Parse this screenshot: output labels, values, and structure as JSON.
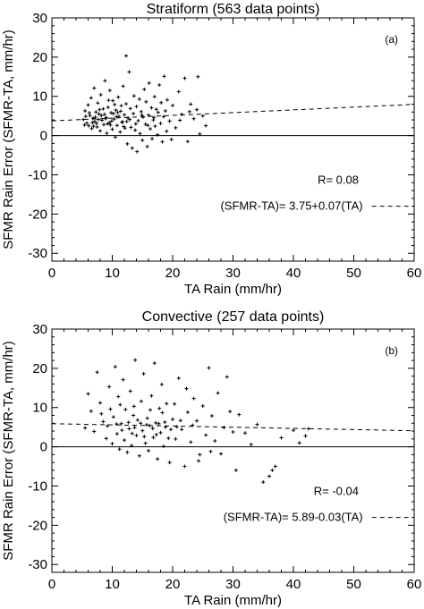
{
  "chart_data": [
    {
      "type": "scatter",
      "panel_label": "(a)",
      "title": "Stratiform (563 data points)",
      "xlabel": "TA Rain (mm/hr)",
      "ylabel": "SFMR Rain Error (SFMR-TA, mm/hr)",
      "xlim": [
        0,
        60
      ],
      "ylim": [
        -32,
        30
      ],
      "xticks": [
        0,
        10,
        20,
        30,
        40,
        50,
        60
      ],
      "yticks": [
        -30,
        -20,
        -10,
        0,
        10,
        20,
        30
      ],
      "zero_line": true,
      "regression": {
        "intercept": 3.75,
        "slope": 0.07
      },
      "r_text": "R= 0.08",
      "eq_text": "(SFMR-TA)= 3.75+0.07(TA)",
      "n_points": 563,
      "points": [
        [
          5.2,
          4.1
        ],
        [
          5.5,
          6.3
        ],
        [
          5.8,
          3.2
        ],
        [
          6.0,
          7.8
        ],
        [
          6.1,
          2.5
        ],
        [
          6.3,
          5.1
        ],
        [
          6.5,
          9.6
        ],
        [
          6.6,
          1.8
        ],
        [
          6.8,
          4.4
        ],
        [
          7.0,
          12.1
        ],
        [
          7.1,
          3.6
        ],
        [
          7.3,
          6.0
        ],
        [
          7.5,
          2.2
        ],
        [
          7.6,
          8.3
        ],
        [
          7.8,
          5.5
        ],
        [
          8.0,
          1.2
        ],
        [
          8.1,
          10.4
        ],
        [
          8.3,
          3.9
        ],
        [
          8.5,
          6.8
        ],
        [
          8.6,
          2.8
        ],
        [
          8.8,
          14.0
        ],
        [
          9.0,
          4.6
        ],
        [
          9.1,
          0.6
        ],
        [
          9.3,
          7.2
        ],
        [
          9.5,
          3.3
        ],
        [
          9.6,
          11.5
        ],
        [
          9.8,
          5.8
        ],
        [
          10.0,
          1.6
        ],
        [
          10.1,
          8.9
        ],
        [
          10.3,
          4.2
        ],
        [
          10.5,
          -0.4
        ],
        [
          10.6,
          6.5
        ],
        [
          10.8,
          2.6
        ],
        [
          11.0,
          9.8
        ],
        [
          11.1,
          4.9
        ],
        [
          11.3,
          0.9
        ],
        [
          11.5,
          7.6
        ],
        [
          11.6,
          3.4
        ],
        [
          11.8,
          12.6
        ],
        [
          12.0,
          5.3
        ],
        [
          12.1,
          1.9
        ],
        [
          12.3,
          8.1
        ],
        [
          12.5,
          -2.1
        ],
        [
          12.6,
          4.5
        ],
        [
          12.8,
          16.2
        ],
        [
          13.0,
          6.9
        ],
        [
          13.1,
          2.1
        ],
        [
          13.3,
          -3.2
        ],
        [
          13.5,
          5.6
        ],
        [
          13.6,
          10.1
        ],
        [
          13.8,
          1.4
        ],
        [
          14.0,
          7.4
        ],
        [
          14.1,
          -4.1
        ],
        [
          14.3,
          3.8
        ],
        [
          14.5,
          9.3
        ],
        [
          14.6,
          0.5
        ],
        [
          14.8,
          6.1
        ],
        [
          15.0,
          -1.2
        ],
        [
          15.1,
          4.7
        ],
        [
          15.3,
          11.8
        ],
        [
          15.5,
          2.9
        ],
        [
          15.6,
          8.6
        ],
        [
          15.8,
          -2.8
        ],
        [
          16.0,
          5.2
        ],
        [
          16.1,
          13.4
        ],
        [
          16.3,
          1.7
        ],
        [
          16.5,
          7.1
        ],
        [
          16.6,
          -0.8
        ],
        [
          16.8,
          4.0
        ],
        [
          17.0,
          9.9
        ],
        [
          17.1,
          2.4
        ],
        [
          17.3,
          6.7
        ],
        [
          17.5,
          0.2
        ],
        [
          17.6,
          5.9
        ],
        [
          17.8,
          12.9
        ],
        [
          18.0,
          3.1
        ],
        [
          18.1,
          8.4
        ],
        [
          18.3,
          -1.6
        ],
        [
          18.5,
          4.8
        ],
        [
          18.6,
          15.1
        ],
        [
          18.8,
          6.3
        ],
        [
          19.0,
          1.1
        ],
        [
          19.1,
          9.1
        ],
        [
          19.5,
          3.7
        ],
        [
          20.0,
          7.7
        ],
        [
          20.5,
          2.0
        ],
        [
          21.0,
          11.2
        ],
        [
          21.5,
          5.4
        ],
        [
          22.0,
          14.6
        ],
        [
          22.5,
          -1.5
        ],
        [
          23.0,
          8.0
        ],
        [
          23.5,
          4.3
        ],
        [
          24.0,
          6.6
        ],
        [
          24.5,
          0.4
        ],
        [
          25.0,
          5.0
        ],
        [
          6.2,
          5.8
        ],
        [
          7.2,
          4.7
        ],
        [
          8.2,
          5.1
        ],
        [
          9.2,
          3.0
        ],
        [
          10.2,
          5.6
        ],
        [
          6.7,
          3.3
        ],
        [
          7.7,
          4.1
        ],
        [
          8.7,
          5.4
        ],
        [
          9.7,
          2.7
        ],
        [
          10.7,
          4.8
        ],
        [
          11.7,
          3.5
        ],
        [
          5.6,
          4.9
        ],
        [
          6.9,
          2.4
        ],
        [
          7.9,
          6.6
        ],
        [
          8.9,
          4.3
        ],
        [
          9.9,
          3.7
        ],
        [
          10.9,
          5.9
        ],
        [
          11.9,
          2.3
        ],
        [
          12.9,
          4.1
        ],
        [
          13.9,
          3.0
        ],
        [
          14.9,
          5.2
        ],
        [
          15.9,
          2.6
        ],
        [
          16.9,
          4.6
        ],
        [
          5.4,
          2.7
        ],
        [
          7.4,
          3.1
        ],
        [
          12.3,
          20.3
        ],
        [
          24.2,
          15.0
        ],
        [
          25.5,
          2.5
        ],
        [
          19.8,
          -1.0
        ],
        [
          21.2,
          3.9
        ],
        [
          22.8,
          6.1
        ],
        [
          9.4,
          9.0
        ],
        [
          10.4,
          7.9
        ],
        [
          11.4,
          6.2
        ],
        [
          12.4,
          3.6
        ]
      ]
    },
    {
      "type": "scatter",
      "panel_label": "(b)",
      "title": "Convective (257 data points)",
      "xlabel": "TA Rain (mm/hr)",
      "ylabel": "SFMR Rain Error (SFMR-TA, mm/hr)",
      "xlim": [
        0,
        60
      ],
      "ylim": [
        -32,
        30
      ],
      "xticks": [
        0,
        10,
        20,
        30,
        40,
        50,
        60
      ],
      "yticks": [
        -30,
        -20,
        -10,
        0,
        10,
        20,
        30
      ],
      "zero_line": true,
      "regression": {
        "intercept": 5.89,
        "slope": -0.03
      },
      "r_text": "R= -0.04",
      "eq_text": "(SFMR-TA)= 5.89-0.03(TA)",
      "n_points": 257,
      "points": [
        [
          5.5,
          4.8
        ],
        [
          6.0,
          13.5
        ],
        [
          6.5,
          9.1
        ],
        [
          7.0,
          3.9
        ],
        [
          7.5,
          19.0
        ],
        [
          8.0,
          11.2
        ],
        [
          8.5,
          6.4
        ],
        [
          9.0,
          2.1
        ],
        [
          9.5,
          15.3
        ],
        [
          10.0,
          0.8
        ],
        [
          10.2,
          7.6
        ],
        [
          10.5,
          20.4
        ],
        [
          10.8,
          3.3
        ],
        [
          11.0,
          12.8
        ],
        [
          11.2,
          -0.6
        ],
        [
          11.5,
          5.9
        ],
        [
          11.8,
          17.1
        ],
        [
          12.0,
          1.7
        ],
        [
          12.2,
          9.5
        ],
        [
          12.5,
          -1.4
        ],
        [
          12.8,
          4.6
        ],
        [
          13.0,
          14.2
        ],
        [
          13.2,
          0.3
        ],
        [
          13.5,
          8.0
        ],
        [
          13.8,
          22.1
        ],
        [
          14.0,
          2.9
        ],
        [
          14.2,
          6.8
        ],
        [
          14.5,
          -2.3
        ],
        [
          14.8,
          11.6
        ],
        [
          15.0,
          4.1
        ],
        [
          15.2,
          18.6
        ],
        [
          15.5,
          0.9
        ],
        [
          15.8,
          7.3
        ],
        [
          16.0,
          -1.0
        ],
        [
          16.2,
          5.4
        ],
        [
          16.5,
          13.0
        ],
        [
          16.8,
          2.4
        ],
        [
          17.0,
          21.3
        ],
        [
          17.2,
          6.1
        ],
        [
          17.5,
          -3.1
        ],
        [
          17.8,
          9.8
        ],
        [
          18.0,
          3.6
        ],
        [
          18.2,
          15.9
        ],
        [
          18.5,
          0.1
        ],
        [
          18.8,
          5.0
        ],
        [
          19.0,
          11.0
        ],
        [
          19.5,
          -4.0
        ],
        [
          20.0,
          7.0
        ],
        [
          20.5,
          2.0
        ],
        [
          21.0,
          17.5
        ],
        [
          21.5,
          4.4
        ],
        [
          22.0,
          -5.0
        ],
        [
          22.5,
          8.8
        ],
        [
          23.0,
          1.2
        ],
        [
          23.5,
          12.3
        ],
        [
          24.0,
          6.6
        ],
        [
          24.5,
          -2.0
        ],
        [
          25.0,
          10.4
        ],
        [
          25.5,
          3.0
        ],
        [
          26.0,
          20.1
        ],
        [
          26.5,
          7.9
        ],
        [
          27.0,
          1.5
        ],
        [
          27.5,
          13.7
        ],
        [
          28.0,
          -1.8
        ],
        [
          28.5,
          4.9
        ],
        [
          29.0,
          17.8
        ],
        [
          29.5,
          9.0
        ],
        [
          30.0,
          3.8
        ],
        [
          30.5,
          -6.0
        ],
        [
          31.0,
          8.2
        ],
        [
          32.0,
          3.5
        ],
        [
          33.0,
          0.6
        ],
        [
          34.0,
          5.7
        ],
        [
          35.0,
          -9.0
        ],
        [
          36.0,
          -7.5
        ],
        [
          36.5,
          -6.0
        ],
        [
          37.0,
          -5.0
        ],
        [
          38.0,
          2.3
        ],
        [
          40.0,
          4.2
        ],
        [
          41.0,
          1.0
        ],
        [
          42.0,
          2.8
        ],
        [
          42.5,
          4.6
        ],
        [
          9.2,
          5.3
        ],
        [
          10.7,
          5.8
        ],
        [
          12.7,
          6.2
        ],
        [
          13.7,
          4.9
        ],
        [
          14.7,
          6.0
        ],
        [
          15.7,
          5.6
        ],
        [
          16.7,
          4.7
        ],
        [
          17.7,
          5.9
        ],
        [
          18.7,
          6.3
        ],
        [
          19.7,
          4.4
        ],
        [
          20.7,
          5.1
        ],
        [
          11.6,
          4.2
        ],
        [
          13.3,
          3.4
        ],
        [
          15.3,
          2.6
        ],
        [
          17.3,
          3.1
        ],
        [
          19.3,
          2.2
        ],
        [
          21.3,
          6.7
        ],
        [
          23.3,
          5.5
        ],
        [
          8.2,
          8.4
        ],
        [
          9.7,
          9.6
        ],
        [
          11.3,
          10.7
        ],
        [
          13.6,
          10.3
        ],
        [
          16.3,
          9.4
        ],
        [
          18.3,
          8.7
        ],
        [
          20.3,
          10.9
        ],
        [
          22.3,
          14.8
        ],
        [
          24.3,
          -3.6
        ],
        [
          26.3,
          -1.2
        ]
      ]
    }
  ]
}
